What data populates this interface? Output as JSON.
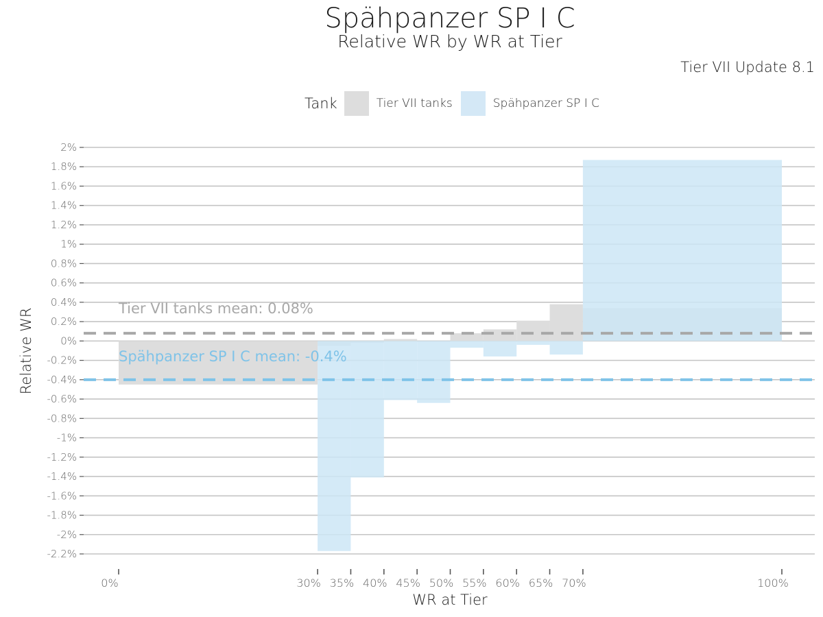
{
  "chart_data": {
    "type": "bar",
    "title": "Spähpanzer SP I C",
    "subtitle": "Relative WR by WR at Tier",
    "caption": "Tier VII Update 8.1",
    "xlabel": "WR at Tier",
    "ylabel": "Relative WR",
    "legend": {
      "title": "Tank",
      "placement": "top",
      "entries": [
        "Tier VII tanks",
        "Spähpanzer SP I C"
      ]
    },
    "x_tick_labels": [
      "0%",
      "30%",
      "35%",
      "40%",
      "45%",
      "50%",
      "55%",
      "60%",
      "65%",
      "70%",
      "100%"
    ],
    "x_tick_values": [
      0,
      30,
      35,
      40,
      45,
      50,
      55,
      60,
      65,
      70,
      100
    ],
    "y_tick_labels": [
      "2%",
      "1.8%",
      "1.6%",
      "1.4%",
      "1.2%",
      "1%",
      "0.8%",
      "0.6%",
      "0.4%",
      "0.2%",
      "0%",
      "-0.2%",
      "-0.4%",
      "-0.6%",
      "-0.8%",
      "-1%",
      "-1.2%",
      "-1.4%",
      "-1.6%",
      "-1.8%",
      "-2%",
      "-2.2%"
    ],
    "y_tick_values": [
      2.0,
      1.8,
      1.6,
      1.4,
      1.2,
      1.0,
      0.8,
      0.6,
      0.4,
      0.2,
      0.0,
      -0.2,
      -0.4,
      -0.6,
      -0.8,
      -1.0,
      -1.2,
      -1.4,
      -1.6,
      -1.8,
      -2.0,
      -2.2
    ],
    "xlim": [
      0,
      100
    ],
    "ylim": [
      -2.2,
      2.0
    ],
    "grid": "horizontal",
    "bins": [
      [
        0,
        30
      ],
      [
        30,
        35
      ],
      [
        35,
        40
      ],
      [
        40,
        45
      ],
      [
        45,
        50
      ],
      [
        50,
        55
      ],
      [
        55,
        60
      ],
      [
        60,
        65
      ],
      [
        65,
        70
      ],
      [
        70,
        100
      ]
    ],
    "series": [
      {
        "name": "Tier VII tanks",
        "color": "#dddddd",
        "values": [
          -0.45,
          -0.05,
          -0.02,
          0.02,
          0.0,
          0.08,
          0.12,
          0.21,
          0.38,
          0.34
        ],
        "mean": 0.08,
        "mean_label": "Tier VII tanks mean: 0.08%",
        "mean_color": "#a8a8a8"
      },
      {
        "name": "Spähpanzer SP I C",
        "color": "#cde6f6",
        "values": [
          null,
          -2.17,
          -1.41,
          -0.61,
          -0.64,
          -0.07,
          -0.16,
          -0.04,
          -0.14,
          1.87
        ],
        "mean": -0.4,
        "mean_label": "Spähpanzer SP I C mean: -0.4%",
        "mean_color": "#7fc3e8"
      }
    ]
  }
}
